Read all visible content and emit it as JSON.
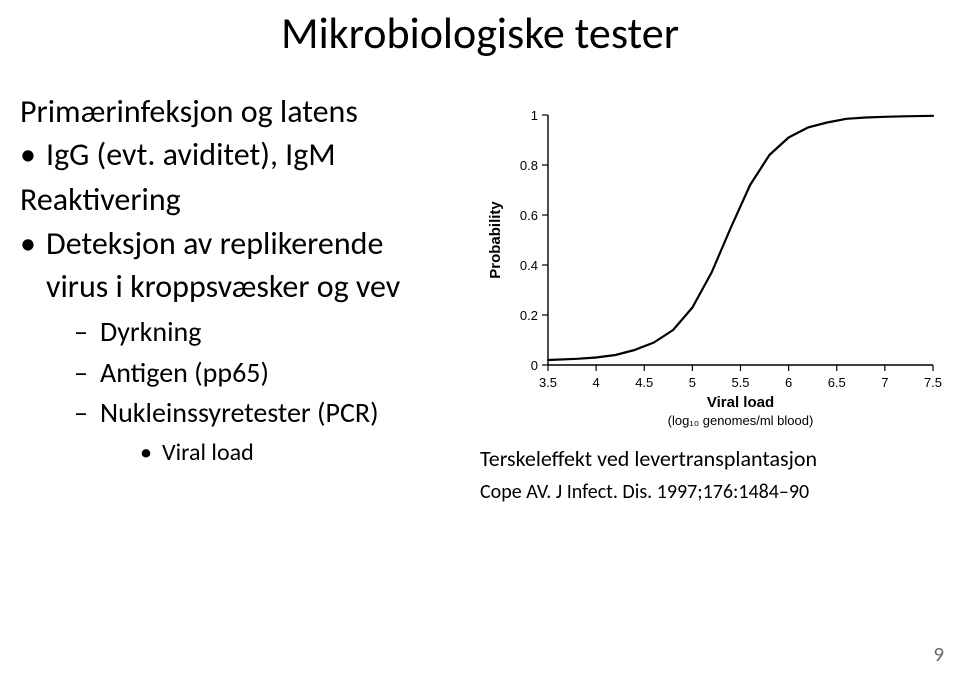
{
  "title": "Mikrobiologiske tester",
  "left": {
    "section1": "Primærinfeksjon og latens",
    "b1a": "IgG (evt. aviditet), IgM",
    "section2": "Reaktivering",
    "b1b": "Deteksjon av replikerende virus i kroppsvæsker og vev",
    "sub1": "Dyrkning",
    "sub2": "Antigen (pp65)",
    "sub3": "Nukleinssyretester (PCR)",
    "sub3a": "Viral load"
  },
  "caption": {
    "line1": "Terskeleffekt ved levertransplantasjon",
    "line2": "Cope AV. J Infect. Dis. 1997;176:1484–90"
  },
  "page": "9",
  "chart": {
    "type": "line",
    "ylabel": "Probability",
    "xlabel": "Viral load",
    "xsublabel": "(log₁₀ genomes/ml blood)",
    "xlim": [
      3.5,
      7.5
    ],
    "ylim": [
      0,
      1
    ],
    "xticks": [
      3.5,
      4,
      4.5,
      5,
      5.5,
      6,
      6.5,
      7,
      7.5
    ],
    "yticks": [
      0,
      0.2,
      0.4,
      0.6,
      0.8,
      1
    ],
    "line_color": "#000000",
    "line_width": 2.2,
    "axis_color": "#000000",
    "tick_font_size": 13,
    "label_font_size": 15,
    "label_font_weight": "bold",
    "background_color": "#ffffff",
    "series_x": [
      3.5,
      3.8,
      4.0,
      4.2,
      4.4,
      4.6,
      4.8,
      5.0,
      5.2,
      5.4,
      5.6,
      5.8,
      6.0,
      6.2,
      6.4,
      6.6,
      6.8,
      7.0,
      7.2,
      7.5
    ],
    "series_y": [
      0.02,
      0.025,
      0.03,
      0.04,
      0.06,
      0.09,
      0.14,
      0.23,
      0.37,
      0.55,
      0.72,
      0.84,
      0.91,
      0.95,
      0.97,
      0.985,
      0.99,
      0.993,
      0.995,
      0.997
    ]
  }
}
